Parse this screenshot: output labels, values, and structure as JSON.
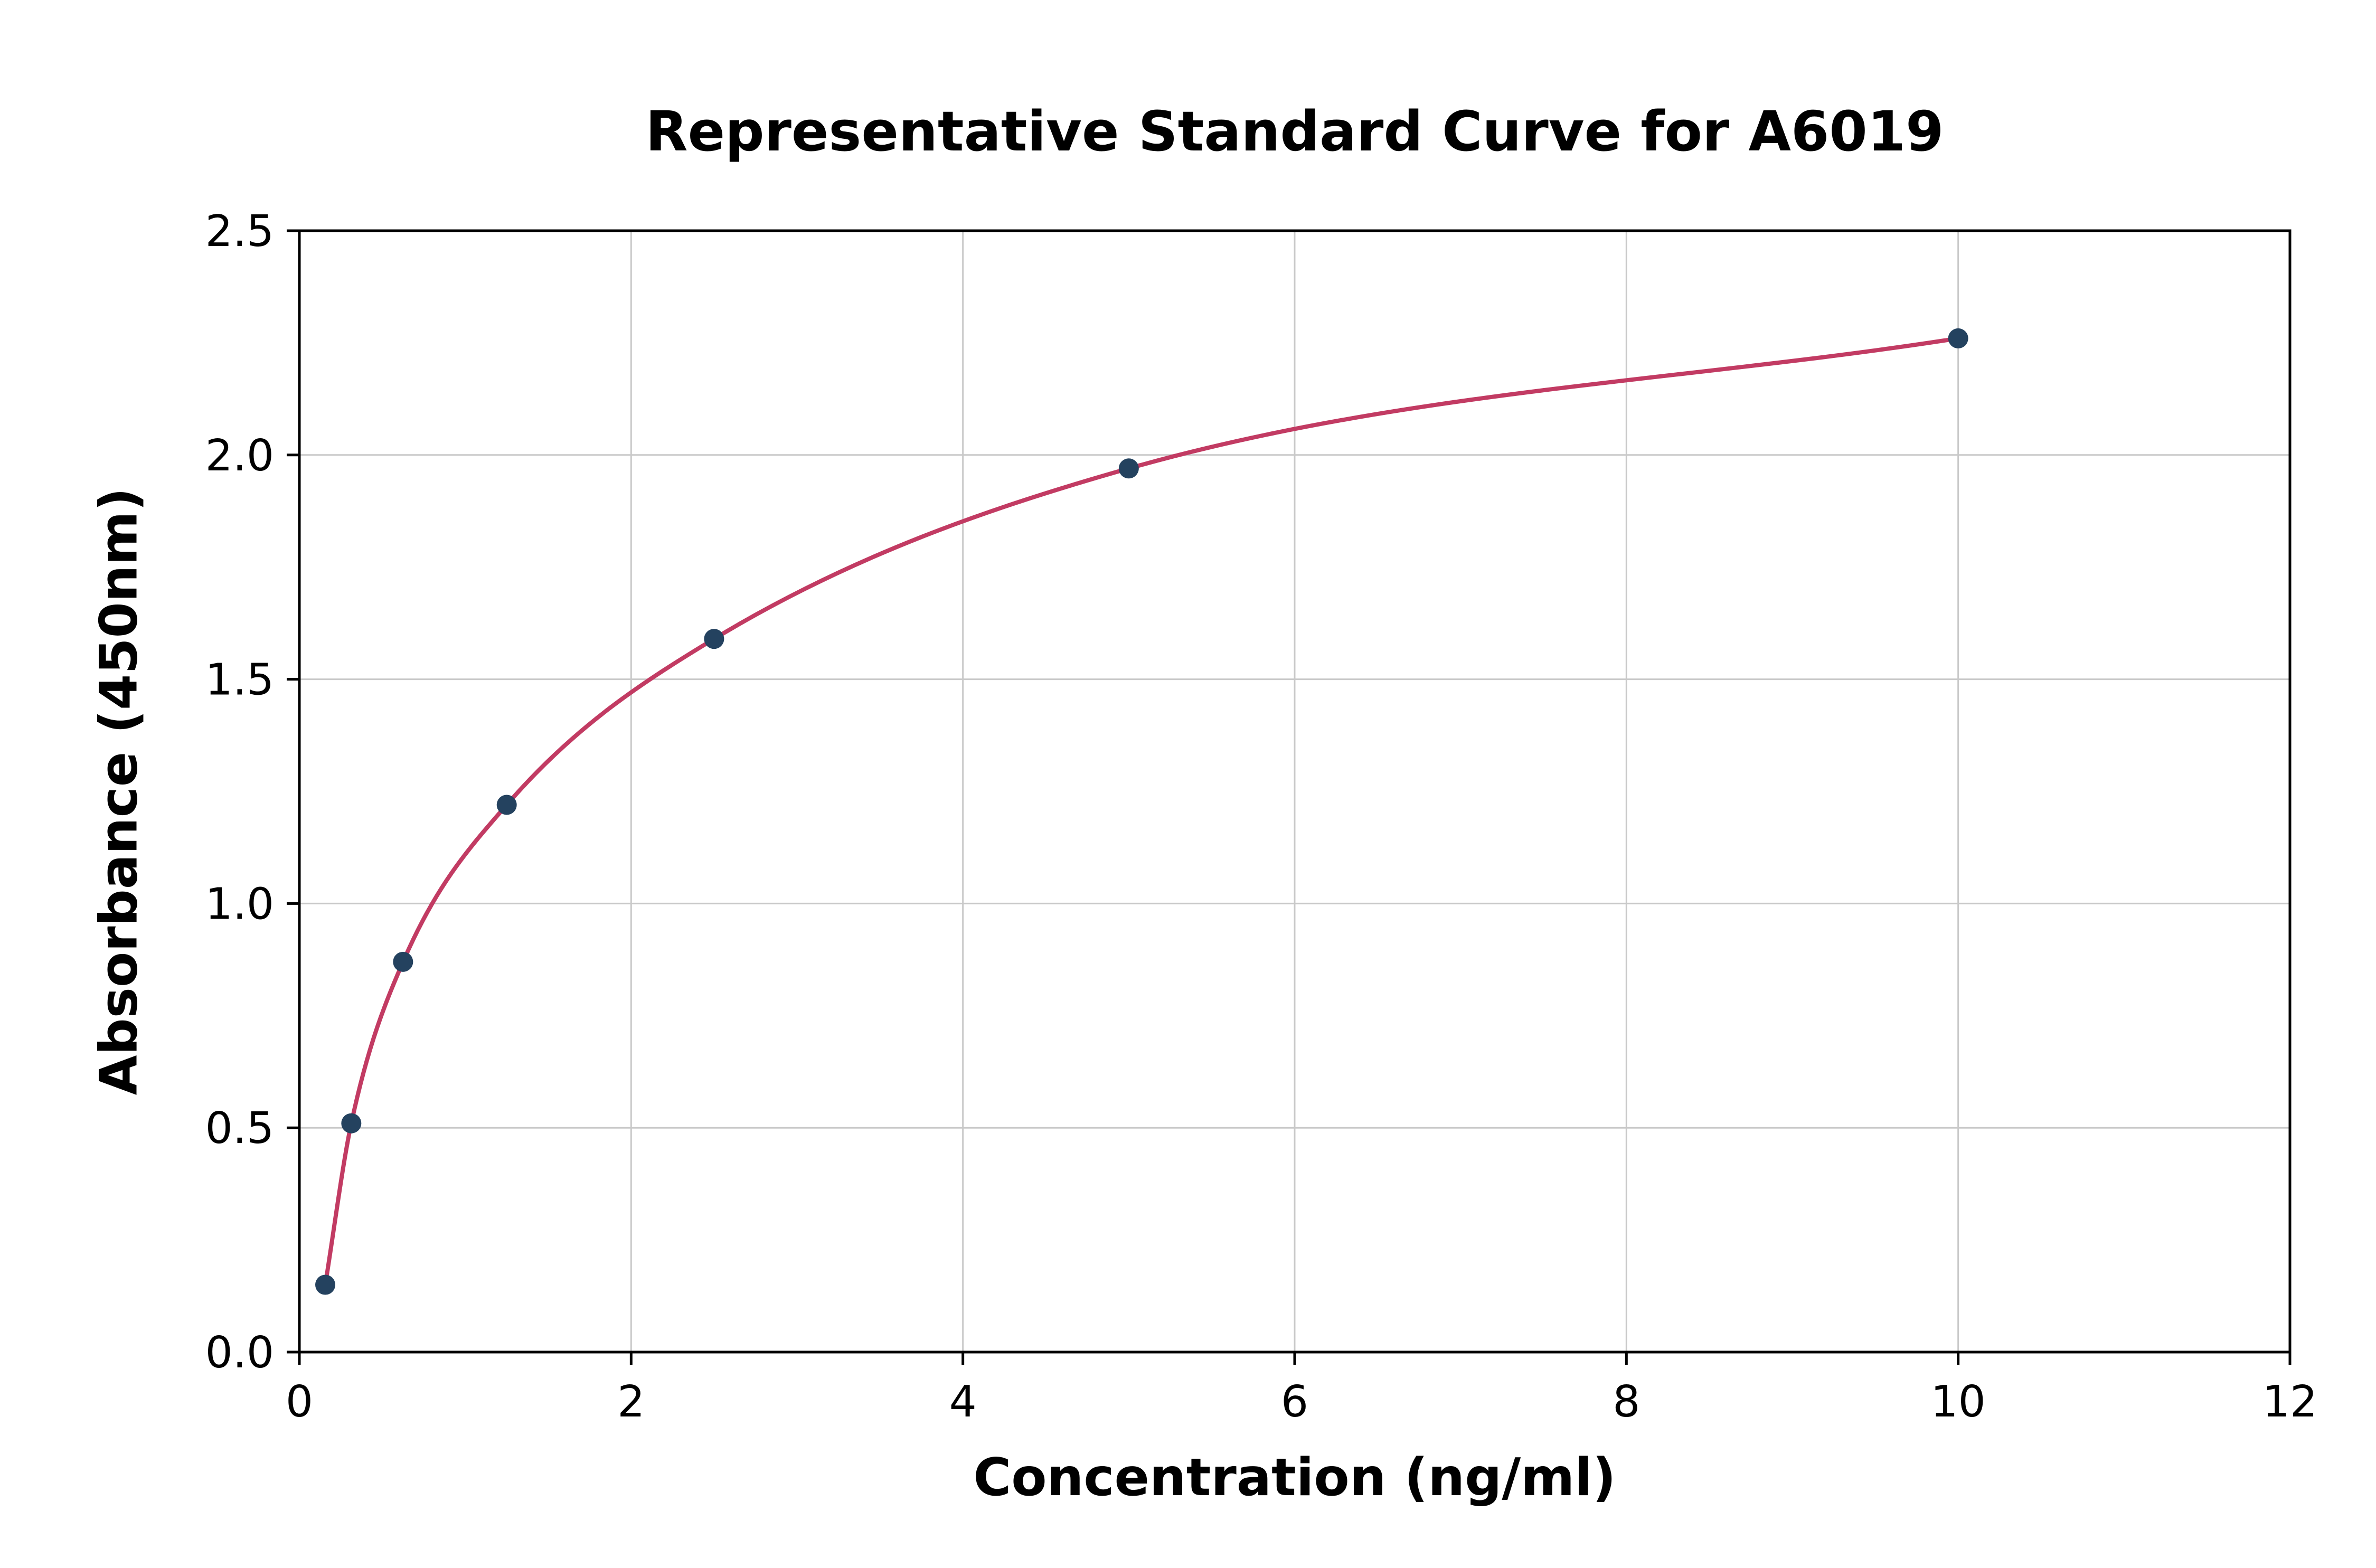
{
  "chart_data": {
    "type": "scatter",
    "title": "Representative Standard Curve for A6019",
    "xlabel": "Concentration (ng/ml)",
    "ylabel": "Absorbance (450nm)",
    "x": [
      0.156,
      0.313,
      0.625,
      1.25,
      2.5,
      5,
      10
    ],
    "y": [
      0.15,
      0.51,
      0.87,
      1.22,
      1.59,
      1.97,
      2.26
    ],
    "xlim": [
      0,
      12
    ],
    "ylim": [
      0,
      2.5
    ],
    "x_ticks": [
      0,
      2,
      4,
      6,
      8,
      10,
      12
    ],
    "x_tick_labels": [
      "0",
      "2",
      "4",
      "6",
      "8",
      "10",
      "12"
    ],
    "y_ticks": [
      0.0,
      0.5,
      1.0,
      1.5,
      2.0,
      2.5
    ],
    "y_tick_labels": [
      "0.0",
      "0.5",
      "1.0",
      "1.5",
      "2.0",
      "2.5"
    ],
    "grid": true,
    "legend_position": "none",
    "colors": {
      "curve": "#c23b63",
      "points": "#24425f",
      "grid": "#c9c9c9",
      "axis": "#000000",
      "background": "#ffffff"
    }
  }
}
